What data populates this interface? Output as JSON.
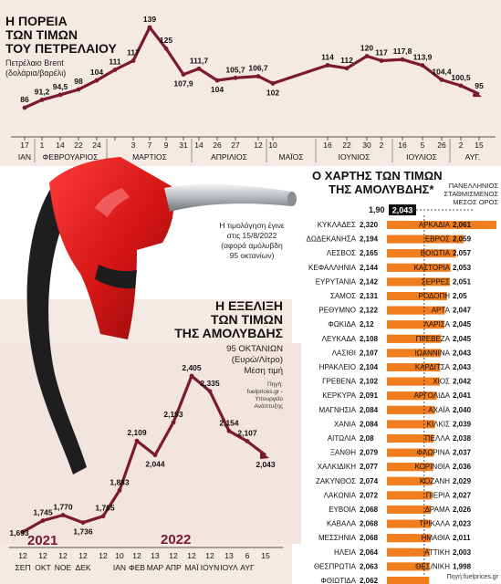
{
  "oil_chart": {
    "title_lines": [
      "Η ΠΟΡΕΙΑ",
      "ΤΩΝ ΤΙΜΩΝ",
      "ΤΟΥ ΠΕΤΡΕΛΑΙΟΥ"
    ],
    "subtitle_lines": [
      "Πετρέλαιο Brent",
      "(δολάρια/βαρέλι)"
    ]
  },
  "fuel_chart": {
    "title_lines": [
      "Η ΕΞΕΛΙΞΗ",
      "ΤΩΝ ΤΙΜΩΝ",
      "ΤΗΣ ΑΜΟΛΥΒΔΗΣ"
    ],
    "subtitle_lines": [
      "95 ΟΚΤΑΝΙΩΝ",
      "(Ευρώ/Λίτρο)",
      "Μέση τιμή"
    ],
    "source_lines": [
      "Πηγή:",
      "fuelprices.gr -",
      "Υπουργείο",
      "Ανάπτυξης"
    ],
    "year_labels": [
      {
        "text": "2021",
        "color": "#7a1a2a"
      },
      {
        "text": "2022",
        "color": "#7a1a2a"
      }
    ]
  },
  "note_lines": [
    "Η τιμολόγηση έγινε",
    "στις 15/8/2022",
    "(αφορά αμόλυβδη",
    "95 οκτανίων)"
  ],
  "map": {
    "title_lines": [
      "Ο ΧΑΡΤΗΣ ΤΩΝ ΤΙΜΩΝ",
      "ΤΗΣ ΑΜΟΛΥΒΔΗΣ*"
    ],
    "avg_label_lines": [
      "ΠΑΝΕΛΛΗΝΙΟΣ",
      "ΣΤΑΘΜΙΣΜΕΝΟΣ",
      "ΜΕΣΟΣ ΟΡΟΣ"
    ],
    "axis_label": "1,90",
    "avg_value": "2,043",
    "footer": "Πηγή:fuelprices.gr",
    "bar_color": "#f07d1e"
  },
  "chart_data": [
    {
      "type": "line",
      "title": "Η ΠΟΡΕΙΑ ΤΩΝ ΤΙΜΩΝ ΤΟΥ ΠΕΤΡΕΛΑΙΟΥ",
      "subtitle": "Πετρέλαιο Brent (δολάρια/βαρέλι)",
      "ylim": [
        80,
        145
      ],
      "line_color": "#7a1a2a",
      "points": [
        {
          "day": "17",
          "label": "86"
        },
        {
          "day": "1",
          "label": "91,2"
        },
        {
          "day": "14",
          "label": "94,5"
        },
        {
          "day": "22",
          "label": "98"
        },
        {
          "day": "24",
          "label": "104"
        },
        {
          "day": "",
          "label": "111"
        },
        {
          "day": "3",
          "label": "117"
        },
        {
          "day": "7",
          "label": "139"
        },
        {
          "day": "9",
          "label": "125"
        },
        {
          "day": "31",
          "label": "107,9"
        },
        {
          "day": "14",
          "label": "111,7"
        },
        {
          "day": "26",
          "label": "104"
        },
        {
          "day": "27",
          "label": "105,7"
        },
        {
          "day": "12",
          "label": "106,7"
        },
        {
          "day": "10",
          "label": "102"
        },
        {
          "day": "16",
          "label": "114"
        },
        {
          "day": "22",
          "label": "112"
        },
        {
          "day": "30",
          "label": "120"
        },
        {
          "day": "2",
          "label": "117"
        },
        {
          "day": "16",
          "label": "117,8"
        },
        {
          "day": "5",
          "label": "113,9"
        },
        {
          "day": "26",
          "label": "104,4"
        },
        {
          "day": "2",
          "label": "100,5"
        },
        {
          "day": "15",
          "label": "95"
        }
      ],
      "values": [
        86,
        91.2,
        94.5,
        98,
        104,
        111,
        117,
        139,
        125,
        107.9,
        111.7,
        104,
        105.7,
        106.7,
        102,
        114,
        112,
        120,
        117,
        117.8,
        113.9,
        104.4,
        100.5,
        95
      ],
      "months": [
        "ΙΑΝ",
        "ΦΕΒΡΟΥΑΡΙΟΣ",
        "ΜΑΡΤΙΟΣ",
        "ΑΠΡΙΛΙΟΣ",
        "ΜΑΪΟΣ",
        "ΙΟΥΝΙΟΣ",
        "ΙΟΥΛΙΟΣ",
        "ΑΥΓ."
      ]
    },
    {
      "type": "line",
      "title": "Η ΕΞΕΛΙΞΗ ΤΩΝ ΤΙΜΩΝ ΤΗΣ ΑΜΟΛΥΒΔΗΣ",
      "subtitle": "95 ΟΚΤΑΝΙΩΝ (Ευρώ/Λίτρο) Μέση τιμή",
      "ylim": [
        1.6,
        2.45
      ],
      "line_color": "#7a1a2a",
      "points": [
        {
          "day": "12",
          "month": "ΣΕΠ",
          "label": "1,693"
        },
        {
          "day": "12",
          "month": "ΟΚΤ",
          "label": "1,745"
        },
        {
          "day": "12",
          "month": "ΝΟΕ",
          "label": "1,770"
        },
        {
          "day": "12",
          "month": "ΔΕΚ",
          "label": "1,736"
        },
        {
          "day": "12",
          "month": "",
          "label": "1,765"
        },
        {
          "day": "10",
          "month": "ΙΑΝ",
          "label": "1,883"
        },
        {
          "day": "12",
          "month": "ΦΕΒ",
          "label": "2,109"
        },
        {
          "day": "13",
          "month": "ΜΑΡ",
          "label": "2,044"
        },
        {
          "day": "12",
          "month": "ΑΠΡ",
          "label": "2,193"
        },
        {
          "day": "12",
          "month": "ΜΑΪ",
          "label": "2,405"
        },
        {
          "day": "12",
          "month": "ΙΟΥΝ",
          "label": "2,335"
        },
        {
          "day": "13",
          "month": "ΙΟΥΛ",
          "label": "2,154"
        },
        {
          "day": "6",
          "month": "ΑΥΓ",
          "label": "2,107"
        },
        {
          "day": "15",
          "month": "",
          "label": "2,043"
        }
      ],
      "values": [
        1.693,
        1.745,
        1.77,
        1.736,
        1.765,
        1.883,
        2.109,
        2.044,
        2.193,
        2.405,
        2.335,
        2.154,
        2.107,
        2.043
      ]
    },
    {
      "type": "bar",
      "title": "Ο ΧΑΡΤΗΣ ΤΩΝ ΤΙΜΩΝ ΤΗΣ ΑΜΟΛΥΒΔΗΣ*",
      "axis_min": 1.9,
      "average": 2.043,
      "left": [
        {
          "name": "ΚΥΚΛΑΔΕΣ",
          "label": "2,320",
          "value": 2.32
        },
        {
          "name": "ΔΩΔΕΚΑΝΗΣΑ",
          "label": "2,194",
          "value": 2.194
        },
        {
          "name": "ΛΕΣΒΟΣ",
          "label": "2,165",
          "value": 2.165
        },
        {
          "name": "ΚΕΦΑΛΛΗΝΙΑ",
          "label": "2,144",
          "value": 2.144
        },
        {
          "name": "ΕΥΡΥΤΑΝΙΑ",
          "label": "2,142",
          "value": 2.142
        },
        {
          "name": "ΣΑΜΟΣ",
          "label": "2,131",
          "value": 2.131
        },
        {
          "name": "ΡΕΘΥΜΝΟ",
          "label": "2,122",
          "value": 2.122
        },
        {
          "name": "ΦΩΚΙΔΑ",
          "label": "2,12",
          "value": 2.12
        },
        {
          "name": "ΛΕΥΚΑΔΑ",
          "label": "2,108",
          "value": 2.108
        },
        {
          "name": "ΛΑΣΙΘΙ",
          "label": "2,107",
          "value": 2.107
        },
        {
          "name": "ΗΡΑΚΛΕΙΟ",
          "label": "2,104",
          "value": 2.104
        },
        {
          "name": "ΓΡΕΒΕΝΑ",
          "label": "2,102",
          "value": 2.102
        },
        {
          "name": "ΚΕΡΚΥΡΑ",
          "label": "2,091",
          "value": 2.091
        },
        {
          "name": "ΜΑΓΝΗΣΙΑ",
          "label": "2,084",
          "value": 2.084
        },
        {
          "name": "ΧΑΝΙΑ",
          "label": "2,084",
          "value": 2.084
        },
        {
          "name": "ΑΙΤΩΛΙΑ",
          "label": "2,08",
          "value": 2.08
        },
        {
          "name": "ΞΑΝΘΗ",
          "label": "2,079",
          "value": 2.079
        },
        {
          "name": "ΧΑΛΚΙΔΙΚΗ",
          "label": "2,077",
          "value": 2.077
        },
        {
          "name": "ΖΑΚΥΝΘΟΣ",
          "label": "2,074",
          "value": 2.074
        },
        {
          "name": "ΛΑΚΩΝΙΑ",
          "label": "2,072",
          "value": 2.072
        },
        {
          "name": "ΕΥΒΟΙΑ",
          "label": "2,068",
          "value": 2.068
        },
        {
          "name": "ΚΑΒΑΛΑ",
          "label": "2,068",
          "value": 2.068
        },
        {
          "name": "ΜΕΣΣΗΝΙΑ",
          "label": "2,068",
          "value": 2.068
        },
        {
          "name": "ΗΛΕΙΑ",
          "label": "2,064",
          "value": 2.064
        },
        {
          "name": "ΘΕΣΠΡΩΤΙΑ",
          "label": "2,063",
          "value": 2.063
        },
        {
          "name": "ΦΘΙΩΤΙΔΑ",
          "label": "2,062",
          "value": 2.062
        }
      ],
      "right": [
        {
          "name": "ΑΡΚΑΔΙΑ",
          "label": "2,061",
          "value": 2.061
        },
        {
          "name": "ΕΒΡΟΣ",
          "label": "2,059",
          "value": 2.059
        },
        {
          "name": "ΒΟΙΩΤΙΑ",
          "label": "2,057",
          "value": 2.057
        },
        {
          "name": "ΚΑΣΤΟΡΙΑ",
          "label": "2,053",
          "value": 2.053
        },
        {
          "name": "ΣΕΡΡΕΣ",
          "label": "2,051",
          "value": 2.051
        },
        {
          "name": "ΡΟΔΟΠΗ",
          "label": "2,05",
          "value": 2.05
        },
        {
          "name": "ΑΡΤΑ",
          "label": "2,047",
          "value": 2.047
        },
        {
          "name": "ΛΑΡΙΣΑ",
          "label": "2,045",
          "value": 2.045
        },
        {
          "name": "ΠΡΕΒΕΖΑ",
          "label": "2,045",
          "value": 2.045
        },
        {
          "name": "ΙΩΑΝΝΙΝΑ",
          "label": "2,043",
          "value": 2.043
        },
        {
          "name": "ΚΑΡΔΙΤΣΑ",
          "label": "2,043",
          "value": 2.043
        },
        {
          "name": "ΧΙΟΣ",
          "label": "2,042",
          "value": 2.042
        },
        {
          "name": "ΑΡΓΟΛΙΔΑ",
          "label": "2,041",
          "value": 2.041
        },
        {
          "name": "ΑΧΑΪΑ",
          "label": "2,040",
          "value": 2.04
        },
        {
          "name": "ΚΙΛΚΙΣ",
          "label": "2,039",
          "value": 2.039
        },
        {
          "name": "ΠΕΛΛΑ",
          "label": "2,038",
          "value": 2.038
        },
        {
          "name": "ΦΛΩΡΙΝΑ",
          "label": "2,037",
          "value": 2.037
        },
        {
          "name": "ΚΟΡΙΝΘΙΑ",
          "label": "2,036",
          "value": 2.036
        },
        {
          "name": "ΚΟΖΑΝΗ",
          "label": "2,029",
          "value": 2.029
        },
        {
          "name": "ΠΙΕΡΙΑ",
          "label": "2,027",
          "value": 2.027
        },
        {
          "name": "ΔΡΑΜΑ",
          "label": "2,026",
          "value": 2.026
        },
        {
          "name": "ΤΡΙΚΑΛΑ",
          "label": "2,023",
          "value": 2.023
        },
        {
          "name": "ΗΜΑΘΙΑ",
          "label": "2,011",
          "value": 2.011
        },
        {
          "name": "ΑΤΤΙΚΗ",
          "label": "2,003",
          "value": 2.003
        },
        {
          "name": "ΘΕΣ/ΝΙΚΗ",
          "label": "1,998",
          "value": 1.998
        }
      ]
    }
  ]
}
